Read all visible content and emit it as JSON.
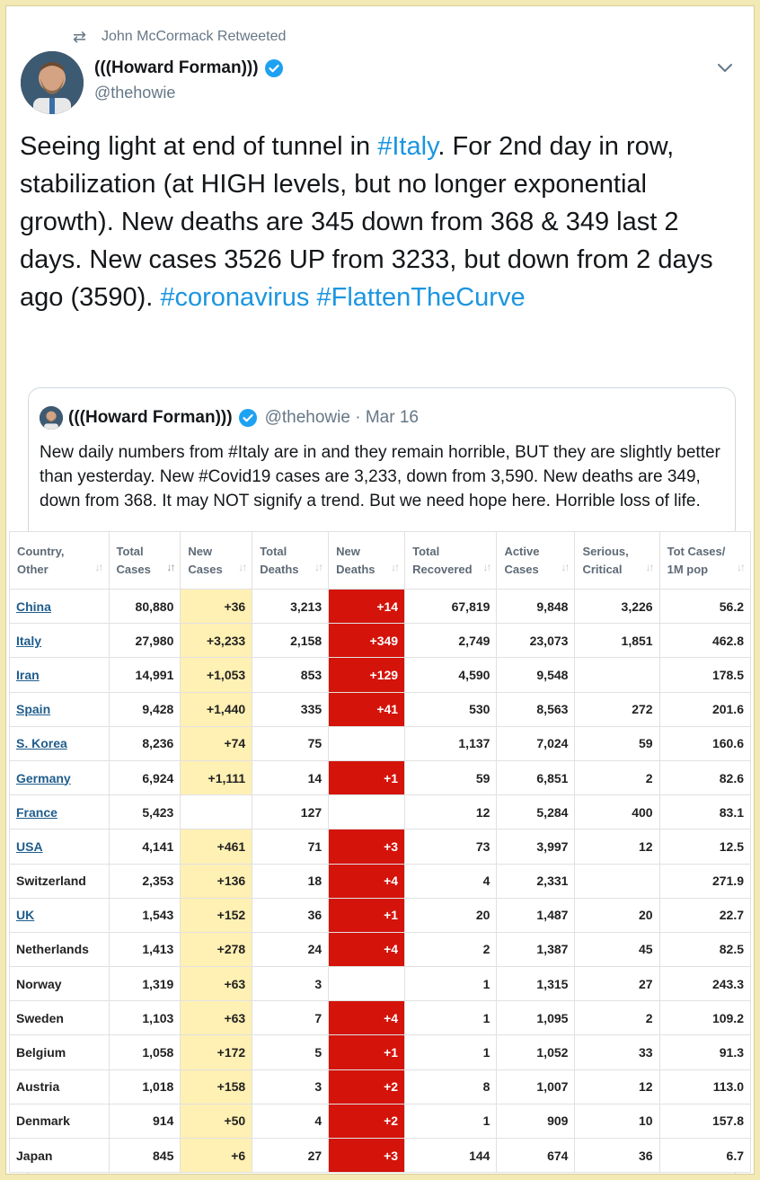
{
  "retweet": {
    "text": "John McCormack Retweeted"
  },
  "author": {
    "name": "(((Howard Forman)))",
    "handle": "@thehowie"
  },
  "tweet": {
    "segments": [
      {
        "text": "Seeing light at end of tunnel in ",
        "type": "text"
      },
      {
        "text": "#Italy",
        "type": "hashtag"
      },
      {
        "text": ". For 2nd day in row, stabilization (at HIGH levels, but no longer exponential growth). New deaths are 345 down from 368 & 349 last 2 days. New cases 3526 UP from 3233, but down from 2 days ago (3590). ",
        "type": "text"
      },
      {
        "text": "#coronavirus",
        "type": "hashtag"
      },
      {
        "text": " ",
        "type": "text"
      },
      {
        "text": "#FlattenTheCurve",
        "type": "hashtag"
      }
    ]
  },
  "quoted": {
    "name": "(((Howard Forman)))",
    "meta": "@thehowie · Mar 16",
    "text": "New daily numbers from #Italy are in and they remain horrible, BUT they are slightly better than yesterday. New #Covid19 cases are 3,233, down from 3,590. New deaths are 349, down from 368. It may NOT signify a trend. But we need hope here.  Horrible loss of life."
  },
  "table": {
    "headers": [
      [
        "Country,",
        "Other"
      ],
      [
        "Total",
        "Cases"
      ],
      [
        "New",
        "Cases"
      ],
      [
        "Total",
        "Deaths"
      ],
      [
        "New",
        "Deaths"
      ],
      [
        "Total",
        "Recovered"
      ],
      [
        "Active",
        "Cases"
      ],
      [
        "Serious,",
        "Critical"
      ],
      [
        "Tot Cases/",
        "1M pop"
      ]
    ],
    "rows": [
      {
        "country": "China",
        "link": true,
        "total_cases": "80,880",
        "new_cases": "+36",
        "total_deaths": "3,213",
        "new_deaths": "+14",
        "recovered": "67,819",
        "active": "9,848",
        "serious": "3,226",
        "per_million": "56.2"
      },
      {
        "country": "Italy",
        "link": true,
        "total_cases": "27,980",
        "new_cases": "+3,233",
        "total_deaths": "2,158",
        "new_deaths": "+349",
        "recovered": "2,749",
        "active": "23,073",
        "serious": "1,851",
        "per_million": "462.8"
      },
      {
        "country": "Iran",
        "link": true,
        "total_cases": "14,991",
        "new_cases": "+1,053",
        "total_deaths": "853",
        "new_deaths": "+129",
        "recovered": "4,590",
        "active": "9,548",
        "serious": "",
        "per_million": "178.5"
      },
      {
        "country": "Spain",
        "link": true,
        "total_cases": "9,428",
        "new_cases": "+1,440",
        "total_deaths": "335",
        "new_deaths": "+41",
        "recovered": "530",
        "active": "8,563",
        "serious": "272",
        "per_million": "201.6"
      },
      {
        "country": "S. Korea",
        "link": true,
        "total_cases": "8,236",
        "new_cases": "+74",
        "total_deaths": "75",
        "new_deaths": "",
        "recovered": "1,137",
        "active": "7,024",
        "serious": "59",
        "per_million": "160.6"
      },
      {
        "country": "Germany",
        "link": true,
        "total_cases": "6,924",
        "new_cases": "+1,111",
        "total_deaths": "14",
        "new_deaths": "+1",
        "recovered": "59",
        "active": "6,851",
        "serious": "2",
        "per_million": "82.6"
      },
      {
        "country": "France",
        "link": true,
        "total_cases": "5,423",
        "new_cases": "",
        "total_deaths": "127",
        "new_deaths": "",
        "recovered": "12",
        "active": "5,284",
        "serious": "400",
        "per_million": "83.1"
      },
      {
        "country": "USA",
        "link": true,
        "total_cases": "4,141",
        "new_cases": "+461",
        "total_deaths": "71",
        "new_deaths": "+3",
        "recovered": "73",
        "active": "3,997",
        "serious": "12",
        "per_million": "12.5"
      },
      {
        "country": "Switzerland",
        "link": false,
        "total_cases": "2,353",
        "new_cases": "+136",
        "total_deaths": "18",
        "new_deaths": "+4",
        "recovered": "4",
        "active": "2,331",
        "serious": "",
        "per_million": "271.9"
      },
      {
        "country": "UK",
        "link": true,
        "total_cases": "1,543",
        "new_cases": "+152",
        "total_deaths": "36",
        "new_deaths": "+1",
        "recovered": "20",
        "active": "1,487",
        "serious": "20",
        "per_million": "22.7"
      },
      {
        "country": "Netherlands",
        "link": false,
        "total_cases": "1,413",
        "new_cases": "+278",
        "total_deaths": "24",
        "new_deaths": "+4",
        "recovered": "2",
        "active": "1,387",
        "serious": "45",
        "per_million": "82.5"
      },
      {
        "country": "Norway",
        "link": false,
        "total_cases": "1,319",
        "new_cases": "+63",
        "total_deaths": "3",
        "new_deaths": "",
        "recovered": "1",
        "active": "1,315",
        "serious": "27",
        "per_million": "243.3"
      },
      {
        "country": "Sweden",
        "link": false,
        "total_cases": "1,103",
        "new_cases": "+63",
        "total_deaths": "7",
        "new_deaths": "+4",
        "recovered": "1",
        "active": "1,095",
        "serious": "2",
        "per_million": "109.2"
      },
      {
        "country": "Belgium",
        "link": false,
        "total_cases": "1,058",
        "new_cases": "+172",
        "total_deaths": "5",
        "new_deaths": "+1",
        "recovered": "1",
        "active": "1,052",
        "serious": "33",
        "per_million": "91.3"
      },
      {
        "country": "Austria",
        "link": false,
        "total_cases": "1,018",
        "new_cases": "+158",
        "total_deaths": "3",
        "new_deaths": "+2",
        "recovered": "8",
        "active": "1,007",
        "serious": "12",
        "per_million": "113.0"
      },
      {
        "country": "Denmark",
        "link": false,
        "total_cases": "914",
        "new_cases": "+50",
        "total_deaths": "4",
        "new_deaths": "+2",
        "recovered": "1",
        "active": "909",
        "serious": "10",
        "per_million": "157.8"
      },
      {
        "country": "Japan",
        "link": false,
        "total_cases": "845",
        "new_cases": "+6",
        "total_deaths": "27",
        "new_deaths": "+3",
        "recovered": "144",
        "active": "674",
        "serious": "36",
        "per_million": "6.7"
      }
    ]
  },
  "colors": {
    "hashtag": "#1b95e0",
    "new_cases_fill": "#fff0b3",
    "new_deaths_fill": "#d4130a",
    "link": "#1f5d8c"
  }
}
